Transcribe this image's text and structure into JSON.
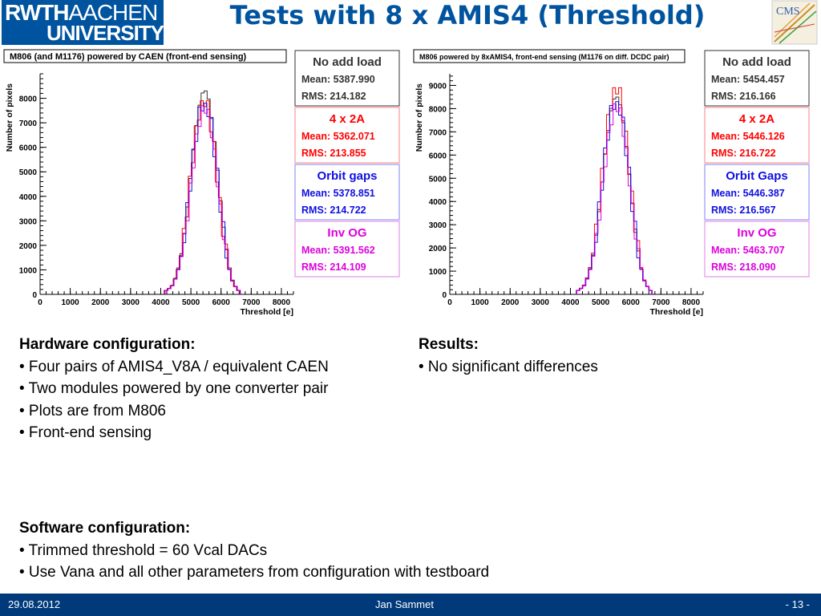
{
  "header": {
    "logo_line1_bold": "RWTH",
    "logo_line1_thin": "AACHEN",
    "logo_line2": "UNIVERSITY",
    "title": "Tests with 8 x AMIS4 (Threshold)",
    "cms_logo": "CMS"
  },
  "colors": {
    "black": "#333333",
    "red": "#ff0000",
    "blue": "#1010e0",
    "magenta": "#dd00dd",
    "rwth_blue": "#00549f"
  },
  "plots": [
    {
      "caption": "M806 (and M1176) powered by CAEN (front-end sensing)",
      "ylabel": "Number of pixels",
      "xlabel": "Threshold [e]",
      "boxes": [
        {
          "name": "No add load",
          "mean": "Mean: 5387.990",
          "rms": "RMS: 214.182"
        },
        {
          "name": "4 x 2A",
          "mean": "Mean: 5362.071",
          "rms": "RMS: 213.855"
        },
        {
          "name": "Orbit gaps",
          "mean": "Mean: 5378.851",
          "rms": "RMS: 214.722"
        },
        {
          "name": "Inv OG",
          "mean": "Mean: 5391.562",
          "rms": "RMS: 214.109"
        }
      ]
    },
    {
      "caption": "M806 powered by 8xAMIS4, front-end sensing (M1176 on diff. DCDC pair)",
      "ylabel": "Number of pixels",
      "xlabel": "Threshold [e]",
      "boxes": [
        {
          "name": "No add load",
          "mean": "Mean: 5454.457",
          "rms": "RMS: 216.166"
        },
        {
          "name": "4 x 2A",
          "mean": "Mean: 5446.126",
          "rms": "RMS: 216.722"
        },
        {
          "name": "Orbit Gaps",
          "mean": "Mean: 5446.387",
          "rms": "RMS: 216.567"
        },
        {
          "name": "Inv OG",
          "mean": "Mean: 5463.707",
          "rms": "RMS: 218.090"
        }
      ]
    }
  ],
  "chart_data": [
    {
      "type": "area",
      "title": "M806 (and M1176) powered by CAEN (front-end sensing)",
      "xlabel": "Threshold [e]",
      "ylabel": "Number of pixels",
      "xlim": [
        0,
        8400
      ],
      "ylim": [
        0,
        9000
      ],
      "xticks": [
        0,
        1000,
        2000,
        3000,
        4000,
        5000,
        6000,
        7000,
        8000
      ],
      "yticks": [
        0,
        1000,
        2000,
        3000,
        4000,
        5000,
        6000,
        7000,
        8000
      ],
      "series": [
        {
          "name": "No add load",
          "mean": 5388,
          "rms": 214,
          "peak": 8300
        },
        {
          "name": "4 x 2A",
          "mean": 5362,
          "rms": 214,
          "peak": 7900
        },
        {
          "name": "Orbit gaps",
          "mean": 5379,
          "rms": 215,
          "peak": 7800
        },
        {
          "name": "Inv OG",
          "mean": 5392,
          "rms": 214,
          "peak": 7700
        }
      ]
    },
    {
      "type": "area",
      "title": "M806 powered by 8xAMIS4, front-end sensing (M1176 on diff. DCDC pair)",
      "xlabel": "Threshold [e]",
      "ylabel": "Number of pixels",
      "xlim": [
        0,
        8400
      ],
      "ylim": [
        0,
        9500
      ],
      "xticks": [
        0,
        1000,
        2000,
        3000,
        4000,
        5000,
        6000,
        7000,
        8000
      ],
      "yticks": [
        0,
        1000,
        2000,
        3000,
        4000,
        5000,
        6000,
        7000,
        8000,
        9000
      ],
      "series": [
        {
          "name": "No add load",
          "mean": 5454,
          "rms": 216,
          "peak": 8500
        },
        {
          "name": "4 x 2A",
          "mean": 5446,
          "rms": 217,
          "peak": 8900
        },
        {
          "name": "Orbit Gaps",
          "mean": 5446,
          "rms": 217,
          "peak": 8300
        },
        {
          "name": "Inv OG",
          "mean": 5464,
          "rms": 218,
          "peak": 8200
        }
      ]
    }
  ],
  "hardware": {
    "heading": "Hardware configuration:",
    "items": [
      "• Four pairs of AMIS4_V8A / equivalent CAEN",
      "• Two modules powered by one converter pair",
      "• Plots are from M806",
      "• Front-end sensing"
    ]
  },
  "results": {
    "heading": "Results:",
    "items": [
      "• No significant differences"
    ]
  },
  "software": {
    "heading": "Software configuration:",
    "items": [
      "• Trimmed threshold = 60 Vcal DACs",
      "• Use Vana and all other parameters from configuration with testboard"
    ]
  },
  "footer": {
    "date": "29.08.2012",
    "author": "Jan Sammet",
    "page": "- 13 -"
  }
}
